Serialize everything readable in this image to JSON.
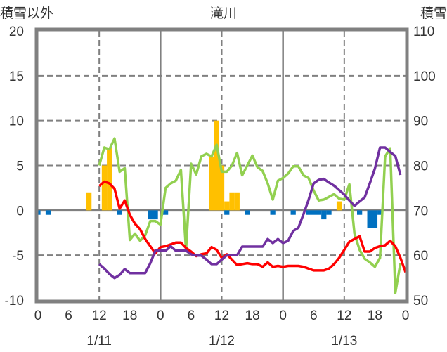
{
  "chart_data": {
    "type": "bar+line",
    "title": "滝川",
    "ylabel_left": "積雪以外",
    "ylabel_right": "積雪",
    "ylim_left": [
      -10,
      20
    ],
    "ylim_right": [
      50,
      110
    ],
    "yticks_left": [
      "20",
      "15",
      "10",
      "5",
      "0",
      "-5",
      "-10"
    ],
    "yticks_right": [
      "110",
      "100",
      "90",
      "80",
      "70",
      "60",
      "50"
    ],
    "xticks": [
      "0",
      "6",
      "12",
      "18",
      "0",
      "6",
      "12",
      "18",
      "0",
      "6",
      "12",
      "18",
      "0"
    ],
    "dates": [
      "1/11",
      "1/12",
      "1/13"
    ],
    "x_hours": [
      0,
      72
    ],
    "colors": {
      "precip": "#ffc000",
      "neg_bar": "#0070c0",
      "temp": "#ff0000",
      "green": "#92d050",
      "snow": "#7030a0"
    },
    "bars_positive": [
      [
        10,
        2
      ],
      [
        13,
        5
      ],
      [
        14,
        7
      ],
      [
        34,
        6
      ],
      [
        35,
        10
      ],
      [
        36,
        5
      ],
      [
        37,
        1
      ],
      [
        38,
        2
      ],
      [
        39,
        2
      ],
      [
        59,
        1
      ]
    ],
    "bars_negative": [
      [
        0,
        -0.5
      ],
      [
        2,
        -0.5
      ],
      [
        16,
        -0.5
      ],
      [
        22,
        -1
      ],
      [
        23,
        -1
      ],
      [
        25,
        -0.5
      ],
      [
        37,
        -0.5
      ],
      [
        41,
        -0.5
      ],
      [
        46,
        -0.5
      ],
      [
        50,
        -0.5
      ],
      [
        53,
        -0.5
      ],
      [
        54,
        -0.5
      ],
      [
        55,
        -0.5
      ],
      [
        56,
        -1
      ],
      [
        57,
        -0.5
      ],
      [
        63,
        -0.5
      ],
      [
        65,
        -2
      ],
      [
        66,
        -2
      ],
      [
        67,
        -0.5
      ]
    ],
    "series_temp": [
      [
        12,
        2.7
      ],
      [
        13,
        3.2
      ],
      [
        14,
        3.0
      ],
      [
        15,
        2.4
      ],
      [
        16,
        0.2
      ],
      [
        17,
        1.1
      ],
      [
        18,
        -0.5
      ],
      [
        19,
        -1.5
      ],
      [
        20,
        -2.1
      ],
      [
        21,
        -3.2
      ],
      [
        22,
        -4
      ],
      [
        23,
        -4.8
      ],
      [
        24,
        -4.1
      ],
      [
        25,
        -4
      ],
      [
        26,
        -3.8
      ],
      [
        27,
        -3.6
      ],
      [
        28,
        -3.6
      ],
      [
        29,
        -4.2
      ],
      [
        30,
        -4.6
      ],
      [
        31,
        -5.1
      ],
      [
        32,
        -4.9
      ],
      [
        33,
        -4.8
      ],
      [
        34,
        -4.1
      ],
      [
        35,
        -4.4
      ],
      [
        36,
        -5.3
      ],
      [
        37,
        -4.9
      ],
      [
        38,
        -5.5
      ],
      [
        39,
        -6.1
      ],
      [
        40,
        -6
      ],
      [
        41,
        -5.9
      ],
      [
        42,
        -6
      ],
      [
        43,
        -6
      ],
      [
        44,
        -6.3
      ],
      [
        45,
        -5.8
      ],
      [
        46,
        -6.3
      ],
      [
        47,
        -6.2
      ],
      [
        48,
        -6.3
      ],
      [
        49,
        -6.2
      ],
      [
        50,
        -6.2
      ],
      [
        51,
        -6.2
      ],
      [
        52,
        -6.3
      ],
      [
        53,
        -6.5
      ],
      [
        54,
        -6.7
      ],
      [
        55,
        -6.7
      ],
      [
        56,
        -6.7
      ],
      [
        57,
        -6.5
      ],
      [
        58,
        -6
      ],
      [
        59,
        -5.3
      ],
      [
        60,
        -4.4
      ],
      [
        61,
        -3.5
      ],
      [
        62,
        -3.2
      ],
      [
        63,
        -2.9
      ],
      [
        64,
        -4.6
      ],
      [
        65,
        -4.6
      ],
      [
        66,
        -4.2
      ],
      [
        67,
        -4
      ],
      [
        68,
        -3.9
      ],
      [
        69,
        -3.4
      ],
      [
        70,
        -4
      ],
      [
        71,
        -5.3
      ],
      [
        72,
        -6.9
      ]
    ],
    "series_green": [
      [
        12,
        5
      ],
      [
        13,
        7
      ],
      [
        14,
        6.8
      ],
      [
        15,
        8
      ],
      [
        16,
        4.3
      ],
      [
        17,
        4.7
      ],
      [
        18,
        -3.3
      ],
      [
        19,
        -2.6
      ],
      [
        20,
        -3.4
      ],
      [
        21,
        -2.8
      ],
      [
        22,
        -1.2
      ],
      [
        23,
        -1.2
      ],
      [
        24,
        -1.6
      ],
      [
        25,
        2.5
      ],
      [
        26,
        3
      ],
      [
        27,
        3.3
      ],
      [
        28,
        4.5
      ],
      [
        29,
        -4.4
      ],
      [
        30,
        5.2
      ],
      [
        31,
        4
      ],
      [
        32,
        6
      ],
      [
        33,
        6.3
      ],
      [
        34,
        6
      ],
      [
        35,
        7.3
      ],
      [
        36,
        4.3
      ],
      [
        37,
        4.3
      ],
      [
        38,
        5
      ],
      [
        39,
        6.4
      ],
      [
        40,
        3.9
      ],
      [
        41,
        5
      ],
      [
        42,
        6.1
      ],
      [
        43,
        4.8
      ],
      [
        44,
        4.4
      ],
      [
        45,
        3
      ],
      [
        46,
        1.2
      ],
      [
        47,
        3.3
      ],
      [
        48,
        3.6
      ],
      [
        49,
        4.1
      ],
      [
        50,
        4.9
      ],
      [
        51,
        4.9
      ],
      [
        52,
        3.9
      ],
      [
        53,
        3.6
      ],
      [
        54,
        2.2
      ],
      [
        55,
        1.1
      ],
      [
        56,
        1.2
      ],
      [
        57,
        1.5
      ],
      [
        58,
        1.8
      ],
      [
        59,
        1.3
      ],
      [
        60,
        1.2
      ],
      [
        61,
        2.9
      ],
      [
        62,
        -2.6
      ],
      [
        63,
        -4.4
      ],
      [
        64,
        -5.4
      ],
      [
        65,
        -5.8
      ],
      [
        66,
        -6.3
      ],
      [
        67,
        -5.3
      ],
      [
        68,
        6
      ],
      [
        69,
        6.9
      ],
      [
        70,
        -9.2
      ],
      [
        71,
        -5.9
      ]
    ],
    "series_snow": [
      [
        12,
        58
      ],
      [
        13,
        57
      ],
      [
        14,
        55.8
      ],
      [
        15,
        54.9
      ],
      [
        16,
        55.6
      ],
      [
        17,
        56.9
      ],
      [
        18,
        56
      ],
      [
        19,
        56
      ],
      [
        20,
        56
      ],
      [
        21,
        56
      ],
      [
        22,
        58.2
      ],
      [
        23,
        61
      ],
      [
        24,
        61
      ],
      [
        25,
        61
      ],
      [
        26,
        62
      ],
      [
        27,
        61
      ],
      [
        28,
        61
      ],
      [
        29,
        61
      ],
      [
        30,
        60.2
      ],
      [
        31,
        59.9
      ],
      [
        32,
        59.9
      ],
      [
        33,
        59
      ],
      [
        34,
        58
      ],
      [
        35,
        58
      ],
      [
        36,
        59
      ],
      [
        37,
        60
      ],
      [
        38,
        60
      ],
      [
        39,
        60
      ],
      [
        40,
        61.9
      ],
      [
        41,
        61.9
      ],
      [
        42,
        61.9
      ],
      [
        43,
        61.9
      ],
      [
        44,
        61.9
      ],
      [
        45,
        63.6
      ],
      [
        46,
        62.7
      ],
      [
        47,
        63.6
      ],
      [
        48,
        62.7
      ],
      [
        49,
        63.2
      ],
      [
        50,
        65.4
      ],
      [
        51,
        66.1
      ],
      [
        52,
        69.1
      ],
      [
        53,
        72.3
      ],
      [
        54,
        76
      ],
      [
        55,
        76.8
      ],
      [
        56,
        77
      ],
      [
        57,
        76.2
      ],
      [
        58,
        75.5
      ],
      [
        59,
        74.5
      ],
      [
        60,
        73.5
      ],
      [
        61,
        72.2
      ],
      [
        62,
        71
      ],
      [
        63,
        72
      ],
      [
        64,
        72.9
      ],
      [
        65,
        76
      ],
      [
        66,
        79.3
      ],
      [
        67,
        84
      ],
      [
        68,
        84
      ],
      [
        69,
        83
      ],
      [
        70,
        82.1
      ],
      [
        71,
        77.9
      ]
    ]
  }
}
